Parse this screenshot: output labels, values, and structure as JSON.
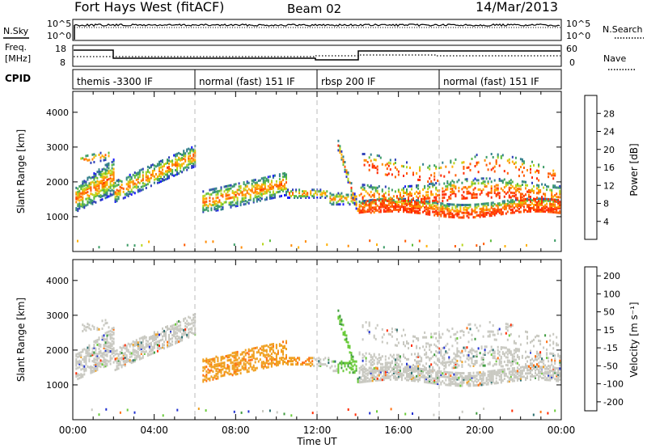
{
  "header": {
    "station": "Fort Hays West (fitACF)",
    "beam": "Beam 02",
    "date": "14/Mar/2013"
  },
  "left_labels": {
    "nsky": "N.Sky",
    "freq_line1": "Freq.",
    "freq_line2": "[MHz]",
    "cpid": "CPID"
  },
  "right_labels": {
    "nsearch": "N.Search",
    "nave": "Nave"
  },
  "noise_ticks": {
    "left": [
      "10^5",
      "10^0"
    ],
    "right": [
      "10^5",
      "10^0"
    ]
  },
  "freq_ticks": {
    "left": [
      "18",
      "8"
    ],
    "right": [
      "60",
      "0"
    ]
  },
  "cpid_segments": [
    {
      "label": "themis -3300 IF",
      "start": 0,
      "end": 6
    },
    {
      "label": "normal (fast) 151 IF",
      "start": 6,
      "end": 12
    },
    {
      "label": "rbsp 200 IF",
      "start": 12,
      "end": 18
    },
    {
      "label": "normal (fast) 151 IF",
      "start": 18,
      "end": 24
    }
  ],
  "chart_data": [
    {
      "type": "heatmap",
      "name": "power-panel",
      "ylabel": "Slant Range [km]",
      "xlabel": "Time UT",
      "xlim": [
        0,
        24
      ],
      "ylim": [
        0,
        4600
      ],
      "yticks": [
        1000,
        2000,
        3000,
        4000
      ],
      "ytick_labels": [
        "1000",
        "2000",
        "3000",
        "4000"
      ],
      "colorbar": {
        "label": "Power [dB]",
        "tick_labels": [
          "4",
          "8",
          "12",
          "16",
          "20",
          "24",
          "28"
        ],
        "colors": [
          "#1a1aff",
          "#2d3fb8",
          "#33808c",
          "#3c9c66",
          "#5dbb3c",
          "#b8d61e",
          "#ffb000",
          "#ff8a00",
          "#ff5a00",
          "#ff2a00"
        ]
      }
    },
    {
      "type": "heatmap",
      "name": "velocity-panel",
      "ylabel": "Slant Range [km]",
      "xlabel": "Time UT",
      "xlim": [
        0,
        24
      ],
      "ylim": [
        0,
        4600
      ],
      "yticks": [
        1000,
        2000,
        3000,
        4000
      ],
      "ytick_labels": [
        "1000",
        "2000",
        "3000",
        "4000"
      ],
      "colorbar": {
        "label": "Velocity [m s⁻¹]",
        "tick_labels": [
          "200",
          "100",
          "50",
          "15",
          "-15",
          "-50",
          "-100",
          "-200"
        ],
        "colors": [
          "#2030d0",
          "#2a6e6e",
          "#3d9a3d",
          "#6acb3a",
          "#c8c8c0",
          "#f0a020",
          "#ff7010",
          "#ff2a00"
        ]
      }
    }
  ],
  "time_axis": {
    "ticks": [
      0,
      4,
      8,
      12,
      16,
      20,
      24
    ],
    "tick_labels": [
      "00:00",
      "04:00",
      "08:00",
      "12:00",
      "16:00",
      "20:00",
      "00:00"
    ],
    "label": "Time UT"
  }
}
